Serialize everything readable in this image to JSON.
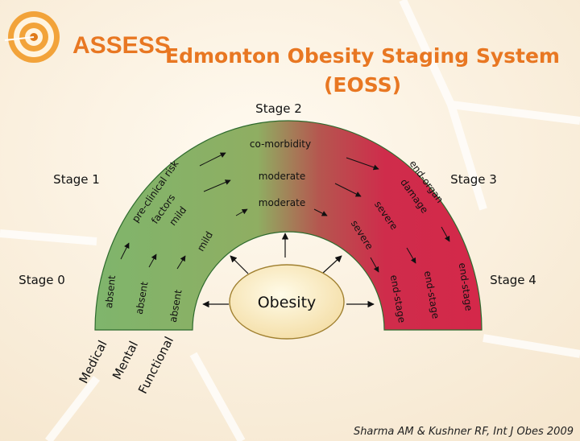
{
  "header": {
    "brand": "ASSESS",
    "title_line1": "Edmonton Obesity Staging System",
    "title_line2": "(EOSS)"
  },
  "stages": {
    "s0": "Stage 0",
    "s1": "Stage 1",
    "s2": "Stage 2",
    "s3": "Stage 3",
    "s4": "Stage 4"
  },
  "center": {
    "label": "Obesity"
  },
  "rows": {
    "medical": "Medical",
    "mental": "Mental",
    "functional": "Functional"
  },
  "arc_terms": {
    "outer_absent": "absent",
    "outer_risk1": "pre-clinical risk",
    "outer_risk2": "factors",
    "outer_comorb": "co-morbidity",
    "outer_damage1": "end-organ",
    "outer_damage2": "damage",
    "outer_endstage": "end-stage",
    "mid_absent": "absent",
    "mid_mild": "mild",
    "mid_moderate": "moderate",
    "mid_severe": "severe",
    "mid_endstage": "end-stage",
    "inner_absent": "absent",
    "inner_mild": "mild",
    "inner_moderate": "moderate",
    "inner_severe": "severe",
    "inner_endstage": "end-stage"
  },
  "citation": "Sharma AM & Kushner RF, Int J Obes 2009",
  "colors": {
    "green": "#7fb56c",
    "red": "#d4294a",
    "title": "#e87722",
    "background": "#fbf3e4"
  }
}
